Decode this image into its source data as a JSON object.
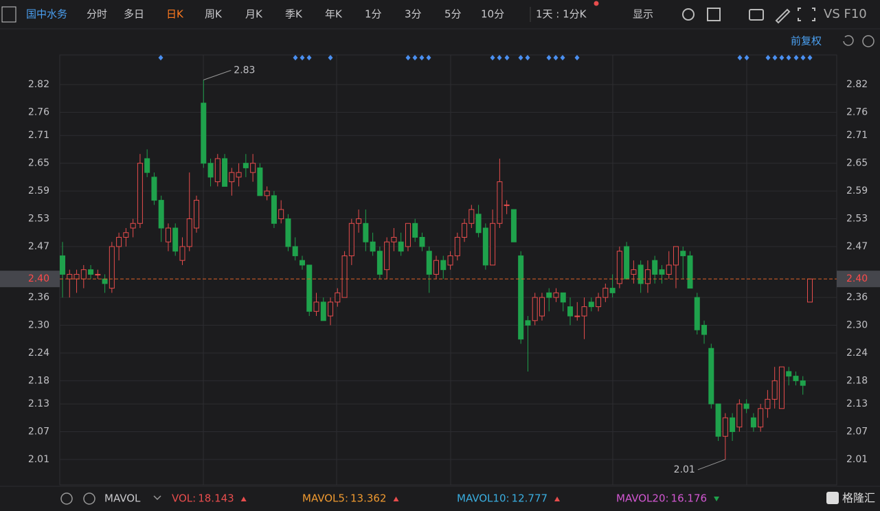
{
  "toolbar": {
    "stock_name": "国中水务",
    "tabs": [
      "分时",
      "多日",
      "日K",
      "周K",
      "月K",
      "季K",
      "年K",
      "1分",
      "3分",
      "5分",
      "10分"
    ],
    "period": "1天 : 1分K",
    "display": "显示",
    "vs": "VS F10",
    "adjust": "前复权"
  },
  "chart_data": {
    "type": "candlestick",
    "up_color": "#e84d4d",
    "down_color": "#1fa24c",
    "open": [
      2.45,
      2.4,
      2.4,
      2.4,
      2.42,
      2.41,
      2.4,
      2.38,
      2.47,
      2.49,
      2.51,
      2.52,
      2.66,
      2.62,
      2.57,
      2.48,
      2.51,
      2.44,
      2.47,
      2.51,
      2.78,
      2.65,
      2.61,
      2.66,
      2.61,
      2.62,
      2.65,
      2.63,
      2.64,
      2.58,
      2.58,
      2.53,
      2.53,
      2.47,
      2.44,
      2.43,
      2.33,
      2.35,
      2.32,
      2.35,
      2.36,
      2.45,
      2.52,
      2.52,
      2.48,
      2.46,
      2.42,
      2.48,
      2.48,
      2.47,
      2.52,
      2.49,
      2.46,
      2.41,
      2.44,
      2.43,
      2.45,
      2.49,
      2.52,
      2.54,
      2.51,
      2.43,
      2.52,
      2.56,
      2.55,
      2.45,
      2.31,
      2.31,
      2.32,
      2.37,
      2.36,
      2.37,
      2.34,
      2.32,
      2.32,
      2.35,
      2.34,
      2.36,
      2.38,
      2.39,
      2.47,
      2.41,
      2.43,
      2.39,
      2.44,
      2.42,
      2.41,
      2.43,
      2.46,
      2.45,
      2.36,
      2.3,
      2.25,
      2.13,
      2.06,
      2.1,
      2.08,
      2.13,
      2.1,
      2.08,
      2.12,
      2.14,
      2.12,
      2.2,
      2.19,
      2.18,
      2.35
    ],
    "high": [
      2.48,
      2.42,
      2.42,
      2.43,
      2.43,
      2.42,
      2.41,
      2.48,
      2.5,
      2.51,
      2.53,
      2.67,
      2.68,
      2.63,
      2.58,
      2.52,
      2.52,
      2.49,
      2.63,
      2.58,
      2.83,
      2.66,
      2.67,
      2.67,
      2.64,
      2.65,
      2.67,
      2.67,
      2.65,
      2.6,
      2.59,
      2.57,
      2.54,
      2.49,
      2.45,
      2.43,
      2.37,
      2.36,
      2.36,
      2.38,
      2.46,
      2.53,
      2.55,
      2.55,
      2.5,
      2.47,
      2.49,
      2.51,
      2.5,
      2.52,
      2.53,
      2.5,
      2.47,
      2.45,
      2.45,
      2.46,
      2.5,
      2.53,
      2.56,
      2.56,
      2.52,
      2.55,
      2.66,
      2.57,
      2.55,
      2.46,
      2.32,
      2.37,
      2.37,
      2.38,
      2.38,
      2.37,
      2.36,
      2.35,
      2.36,
      2.36,
      2.37,
      2.39,
      2.41,
      2.47,
      2.48,
      2.44,
      2.44,
      2.44,
      2.45,
      2.43,
      2.46,
      2.47,
      2.47,
      2.46,
      2.37,
      2.31,
      2.26,
      2.13,
      2.11,
      2.11,
      2.14,
      2.14,
      2.11,
      2.13,
      2.16,
      2.21,
      2.21,
      2.21,
      2.2,
      2.19,
      2.4
    ],
    "low": [
      2.36,
      2.36,
      2.37,
      2.38,
      2.4,
      2.4,
      2.37,
      2.37,
      2.44,
      2.47,
      2.49,
      2.51,
      2.62,
      2.56,
      2.48,
      2.46,
      2.45,
      2.43,
      2.46,
      2.5,
      2.64,
      2.6,
      2.6,
      2.6,
      2.58,
      2.6,
      2.62,
      2.61,
      2.58,
      2.57,
      2.51,
      2.52,
      2.46,
      2.44,
      2.42,
      2.32,
      2.32,
      2.31,
      2.3,
      2.34,
      2.36,
      2.43,
      2.5,
      2.46,
      2.45,
      2.4,
      2.4,
      2.46,
      2.45,
      2.46,
      2.48,
      2.46,
      2.37,
      2.4,
      2.4,
      2.42,
      2.44,
      2.48,
      2.51,
      2.49,
      2.42,
      2.43,
      2.51,
      2.54,
      2.48,
      2.26,
      2.2,
      2.3,
      2.31,
      2.33,
      2.35,
      2.33,
      2.3,
      2.31,
      2.27,
      2.33,
      2.33,
      2.35,
      2.36,
      2.38,
      2.4,
      2.39,
      2.37,
      2.37,
      2.39,
      2.39,
      2.4,
      2.38,
      2.4,
      2.38,
      2.28,
      2.26,
      2.12,
      2.05,
      2.01,
      2.05,
      2.07,
      2.11,
      2.07,
      2.07,
      2.1,
      2.12,
      2.12,
      2.17,
      2.17,
      2.15,
      2.35
    ],
    "close": [
      2.41,
      2.41,
      2.41,
      2.42,
      2.41,
      2.41,
      2.39,
      2.47,
      2.49,
      2.5,
      2.52,
      2.65,
      2.63,
      2.57,
      2.51,
      2.51,
      2.46,
      2.47,
      2.53,
      2.57,
      2.65,
      2.62,
      2.66,
      2.6,
      2.63,
      2.63,
      2.64,
      2.65,
      2.58,
      2.59,
      2.52,
      2.55,
      2.47,
      2.45,
      2.43,
      2.33,
      2.35,
      2.31,
      2.35,
      2.37,
      2.45,
      2.52,
      2.53,
      2.48,
      2.46,
      2.41,
      2.48,
      2.49,
      2.46,
      2.52,
      2.49,
      2.47,
      2.41,
      2.44,
      2.42,
      2.45,
      2.49,
      2.52,
      2.55,
      2.5,
      2.43,
      2.52,
      2.61,
      2.56,
      2.48,
      2.27,
      2.3,
      2.36,
      2.36,
      2.36,
      2.37,
      2.35,
      2.32,
      2.32,
      2.34,
      2.34,
      2.36,
      2.38,
      2.37,
      2.46,
      2.4,
      2.42,
      2.39,
      2.42,
      2.41,
      2.41,
      2.43,
      2.47,
      2.45,
      2.38,
      2.29,
      2.28,
      2.13,
      2.06,
      2.1,
      2.07,
      2.13,
      2.12,
      2.08,
      2.12,
      2.14,
      2.18,
      2.21,
      2.19,
      2.18,
      2.17,
      2.4
    ],
    "ylim": [
      1.955,
      2.884
    ],
    "yticks": [
      2.01,
      2.07,
      2.13,
      2.18,
      2.24,
      {
        "value": 2.3,
        "label": "2.30"
      },
      2.36,
      2.47,
      2.53,
      2.59,
      2.65,
      2.71,
      2.76,
      2.82
    ],
    "max_label": 2.83,
    "min_label": 2.01,
    "last_price": {
      "value": 2.4,
      "label": "2.40"
    },
    "indicator_name": "MAVOL",
    "indicators": [
      {
        "name": "VOL:",
        "value": 18.143,
        "color": "#e84d4d",
        "trend": "up"
      },
      {
        "name": "MAVOL5:",
        "value": 13.362,
        "color": "#f09a30",
        "trend": "up"
      },
      {
        "name": "MAVOL10:",
        "value": 12.777,
        "color": "#3aaee0",
        "trend": "up"
      },
      {
        "name": "MAVOL20:",
        "value": 16.176,
        "color": "#d257d2",
        "trend": "down"
      }
    ]
  },
  "brand": "格隆汇"
}
